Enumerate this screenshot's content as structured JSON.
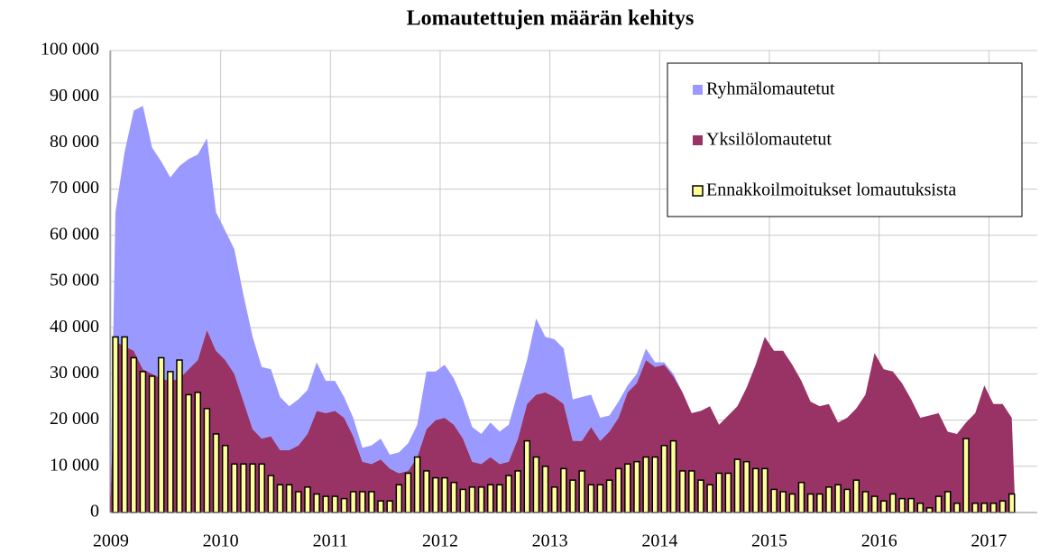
{
  "chart_data": {
    "type": "area",
    "title": "Lomautettujen määrän kehitys",
    "categories": [
      "2009",
      null,
      null,
      null,
      null,
      null,
      null,
      null,
      null,
      null,
      null,
      null,
      "2010",
      null,
      null,
      null,
      null,
      null,
      null,
      null,
      null,
      null,
      null,
      null,
      "2011",
      null,
      null,
      null,
      null,
      null,
      null,
      null,
      null,
      null,
      null,
      null,
      "2012",
      null,
      null,
      null,
      null,
      null,
      null,
      null,
      null,
      null,
      null,
      null,
      "2013",
      null,
      null,
      null,
      null,
      null,
      null,
      null,
      null,
      null,
      null,
      null,
      "2014",
      null,
      null,
      null,
      null,
      null,
      null,
      null,
      null,
      null,
      null,
      null,
      "2015",
      null,
      null,
      null,
      null,
      null,
      null,
      null,
      null,
      null,
      null,
      null,
      "2016",
      null,
      null,
      null,
      null,
      null,
      null,
      null,
      null,
      null,
      null,
      null,
      "2017",
      null,
      null
    ],
    "series": [
      {
        "name": "Ryhmälomautetut",
        "color": "#9999ff",
        "type": "area",
        "values": [
          28000,
          42000,
          52000,
          57000,
          49000,
          47000,
          44000,
          46000,
          45500,
          44500,
          41500,
          30000,
          28000,
          27000,
          23000,
          20000,
          15500,
          14500,
          11500,
          9500,
          10000,
          9500,
          10500,
          7000,
          6500,
          4500,
          4000,
          3000,
          4000,
          4500,
          3000,
          4500,
          6000,
          7000,
          12500,
          10500,
          11500,
          10000,
          8500,
          7500,
          6500,
          7500,
          7000,
          8000,
          10000,
          9500,
          16500,
          12000,
          12500,
          12000,
          9000,
          9500,
          7000,
          5000,
          3500,
          3500,
          1500,
          2000,
          2500,
          1000,
          500,
          500,
          0,
          0,
          0,
          0,
          0,
          0,
          0,
          0,
          0,
          0,
          0,
          0,
          0,
          0,
          0,
          0,
          0,
          0,
          0,
          0,
          0,
          0,
          0,
          0,
          0,
          0,
          0,
          0,
          0,
          0,
          0,
          0,
          0,
          0,
          0,
          0,
          0
        ]
      },
      {
        "name": "Yksilölomautetut",
        "color": "#993366",
        "type": "area",
        "values": [
          37000,
          36000,
          35000,
          31000,
          30000,
          29000,
          28500,
          29000,
          31000,
          33000,
          39500,
          35000,
          33000,
          30000,
          24000,
          18000,
          16000,
          16500,
          13500,
          13500,
          14500,
          17000,
          22000,
          21500,
          22000,
          20500,
          16500,
          11000,
          10500,
          11500,
          9500,
          8500,
          9000,
          12000,
          18000,
          20000,
          20500,
          19000,
          16000,
          11000,
          10500,
          12000,
          10500,
          11000,
          16000,
          23500,
          25500,
          26000,
          25000,
          23500,
          15500,
          15500,
          18500,
          15500,
          17500,
          20500,
          26000,
          28000,
          33000,
          31500,
          32000,
          29500,
          26000,
          21500,
          22000,
          23000,
          19000,
          21000,
          23000,
          27000,
          32000,
          38000,
          35000,
          35000,
          32000,
          28500,
          24000,
          23000,
          23500,
          19500,
          20500,
          22500,
          25500,
          34500,
          31000,
          30500,
          28000,
          24500,
          20500,
          21000,
          21500,
          17500,
          17000,
          19500,
          21500,
          27500,
          23500,
          23500,
          20500
        ]
      },
      {
        "name": "Ennakkoilmoitukset lomautuksista",
        "color": "#ffff99",
        "type": "bar",
        "values": [
          38000,
          38000,
          33500,
          30500,
          29500,
          33500,
          30500,
          33000,
          25500,
          26000,
          22500,
          17000,
          14500,
          10500,
          10500,
          10500,
          10500,
          8000,
          6000,
          6000,
          4500,
          5500,
          4000,
          3500,
          3500,
          3000,
          4500,
          4500,
          4500,
          2500,
          2500,
          6000,
          8500,
          12000,
          9000,
          7500,
          7500,
          6500,
          5000,
          5500,
          5500,
          6000,
          6000,
          8000,
          9000,
          15500,
          12000,
          10000,
          5500,
          9500,
          7000,
          9000,
          6000,
          6000,
          7000,
          9500,
          10500,
          11000,
          12000,
          12000,
          14500,
          15500,
          9000,
          9000,
          7000,
          6000,
          8500,
          8500,
          11500,
          11000,
          9500,
          9500,
          5000,
          4500,
          4000,
          6500,
          4000,
          4000,
          5500,
          6000,
          5000,
          7000,
          4500,
          3500,
          2500,
          4000,
          3000,
          3000,
          2000,
          1000,
          3500,
          4500,
          2000,
          16000,
          2000,
          2000,
          2000,
          2500,
          4000
        ]
      }
    ],
    "ylim": [
      0,
      100000
    ],
    "yticks": [
      0,
      {
        "value": 10000,
        "label": "10 000"
      },
      {
        "value": 20000,
        "label": "20 000"
      },
      {
        "value": 30000,
        "label": "30 000"
      },
      {
        "value": 40000,
        "label": "40 000"
      },
      {
        "value": 50000,
        "label": "50 000"
      },
      {
        "value": 60000,
        "label": "60 000"
      },
      {
        "value": 70000,
        "label": "70 000"
      },
      {
        "value": 80000,
        "label": "80 000"
      },
      {
        "value": 90000,
        "label": "90 000"
      },
      {
        "value": 100000,
        "label": "100 000"
      }
    ],
    "grid": true,
    "legend": "upper right"
  }
}
